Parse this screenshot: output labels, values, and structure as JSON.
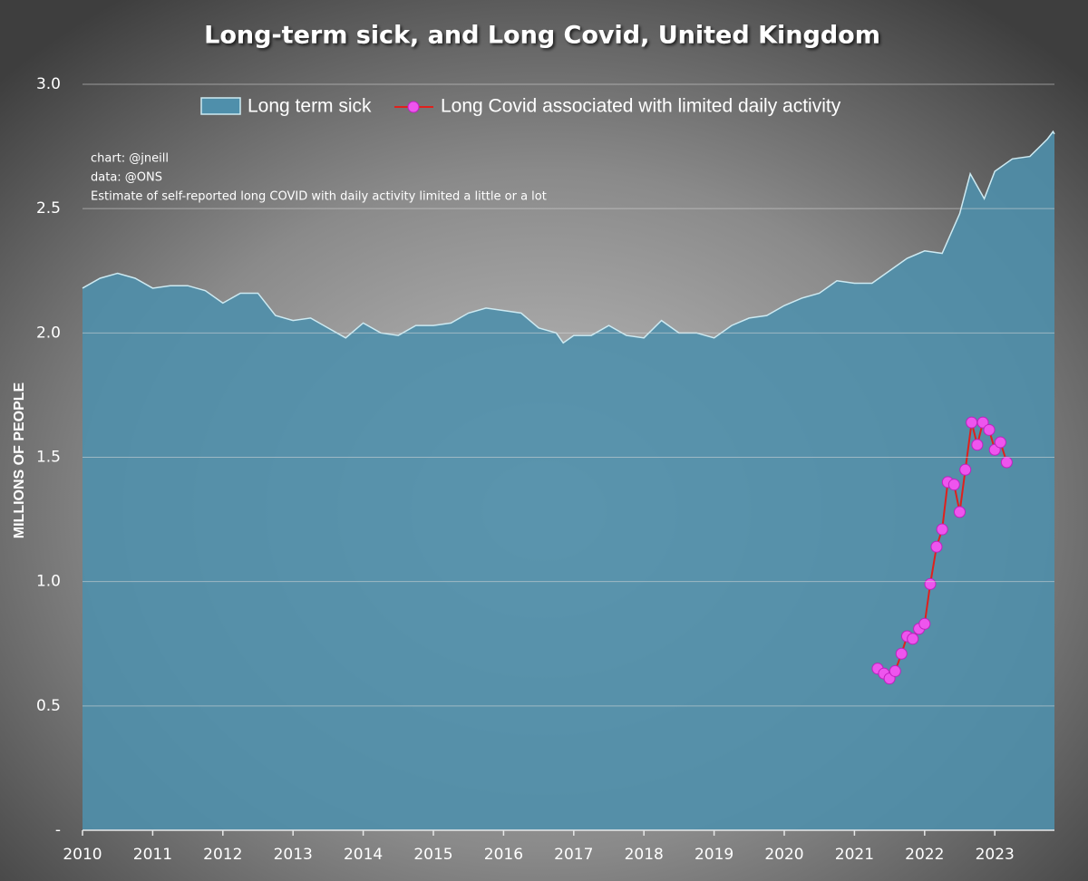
{
  "chart_data": {
    "type": "area-line",
    "title": "Long-term sick, and Long Covid, United Kingdom",
    "y_label": "MILLIONS OF PEOPLE",
    "annotations": [
      "chart: @jneill",
      "data: @ONS",
      "Estimate of self-reported long COVID with daily activity limited  a little or a lot"
    ],
    "xlim": [
      2010,
      2023.85
    ],
    "xticks": [
      2010,
      2011,
      2012,
      2013,
      2014,
      2015,
      2016,
      2017,
      2018,
      2019,
      2020,
      2021,
      2022,
      2023
    ],
    "ylim": [
      0,
      3
    ],
    "yticks": [
      {
        "value": 0,
        "label": "-"
      },
      {
        "value": 0.5,
        "label": "0.5"
      },
      {
        "value": 1,
        "label": "1.0"
      },
      {
        "value": 1.5,
        "label": "1.5"
      },
      {
        "value": 2,
        "label": "2.0"
      },
      {
        "value": 2.5,
        "label": "2.5"
      },
      {
        "value": 3,
        "label": "3.0"
      }
    ],
    "grid": true,
    "legend": "top",
    "series": [
      {
        "name": "Long term sick",
        "kind": "area",
        "color": "#4f8fab",
        "x": [
          2010,
          2010.25,
          2010.5,
          2010.75,
          2011,
          2011.25,
          2011.5,
          2011.75,
          2012,
          2012.25,
          2012.5,
          2012.75,
          2013,
          2013.25,
          2013.5,
          2013.75,
          2014,
          2014.25,
          2014.5,
          2014.75,
          2015,
          2015.25,
          2015.5,
          2015.75,
          2016,
          2016.25,
          2016.5,
          2016.75,
          2016.85,
          2017,
          2017.25,
          2017.5,
          2017.75,
          2018,
          2018.25,
          2018.5,
          2018.75,
          2019,
          2019.25,
          2019.5,
          2019.75,
          2020,
          2020.25,
          2020.5,
          2020.75,
          2021,
          2021.25,
          2021.5,
          2021.75,
          2022,
          2022.25,
          2022.5,
          2022.65,
          2022.85,
          2023,
          2023.25,
          2023.5,
          2023.75,
          2023.83,
          2023.85
        ],
        "values": [
          2.18,
          2.22,
          2.24,
          2.22,
          2.18,
          2.19,
          2.19,
          2.17,
          2.12,
          2.16,
          2.16,
          2.07,
          2.05,
          2.06,
          2.02,
          1.98,
          2.04,
          2.0,
          1.99,
          2.03,
          2.03,
          2.04,
          2.08,
          2.1,
          2.09,
          2.08,
          2.02,
          2.0,
          1.96,
          1.99,
          1.99,
          2.03,
          1.99,
          1.98,
          2.05,
          2.0,
          2.0,
          1.98,
          2.03,
          2.06,
          2.07,
          2.11,
          2.14,
          2.16,
          2.21,
          2.2,
          2.2,
          2.25,
          2.3,
          2.33,
          2.32,
          2.48,
          2.64,
          2.54,
          2.65,
          2.7,
          2.71,
          2.78,
          2.81,
          2.8
        ]
      },
      {
        "name": "Long Covid associated with limited daily activity",
        "kind": "line",
        "color": "#e0201c",
        "marker_color": "#ee55ee",
        "x": [
          2021.33,
          2021.42,
          2021.5,
          2021.58,
          2021.67,
          2021.75,
          2021.83,
          2021.92,
          2022,
          2022.08,
          2022.17,
          2022.25,
          2022.33,
          2022.42,
          2022.5,
          2022.58,
          2022.67,
          2022.75,
          2022.83,
          2022.92,
          2023,
          2023.08,
          2023.17
        ],
        "values": [
          0.65,
          0.63,
          0.61,
          0.64,
          0.71,
          0.78,
          0.77,
          0.81,
          0.83,
          0.99,
          1.14,
          1.21,
          1.4,
          1.39,
          1.28,
          1.45,
          1.64,
          1.55,
          1.64,
          1.61,
          1.53,
          1.56,
          1.48
        ]
      }
    ]
  }
}
